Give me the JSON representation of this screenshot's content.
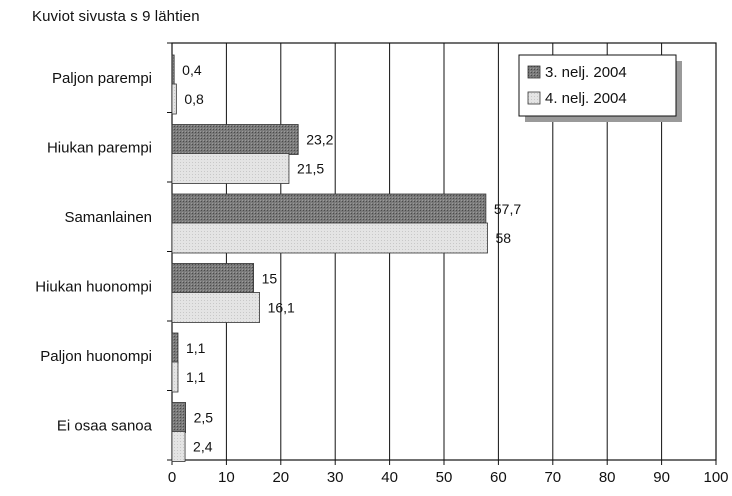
{
  "caption": "Kuviot sivusta s 9 lähtien",
  "chart_data": {
    "type": "bar",
    "orientation": "horizontal",
    "categories": [
      "Paljon parempi",
      "Hiukan parempi",
      "Samanlainen",
      "Hiukan huonompi",
      "Paljon huonompi",
      "Ei osaa sanoa"
    ],
    "series": [
      {
        "name": "3. nelj. 2004",
        "values": [
          0.4,
          23.2,
          57.7,
          15,
          1.1,
          2.5
        ],
        "labels": [
          "0,4",
          "23,2",
          "57,7",
          "15",
          "1,1",
          "2,5"
        ],
        "color": "#7a7a7a"
      },
      {
        "name": "4. nelj. 2004",
        "values": [
          0.8,
          21.5,
          58,
          16.1,
          1.1,
          2.4
        ],
        "labels": [
          "0,8",
          "21,5",
          "58",
          "16,1",
          "1,1",
          "2,4"
        ],
        "color": "#e4e4e4"
      }
    ],
    "xlim": [
      0,
      100
    ],
    "xticks": [
      0,
      10,
      20,
      30,
      40,
      50,
      60,
      70,
      80,
      90,
      100
    ],
    "grid": true,
    "legend": "top-right"
  }
}
